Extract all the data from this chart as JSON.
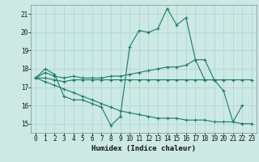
{
  "xlabel": "Humidex (Indice chaleur)",
  "ylabel": "",
  "bg_color": "#cce9e4",
  "grid_color": "#b0d8d4",
  "line_color": "#1a7a6e",
  "xlim": [
    -0.5,
    23.5
  ],
  "ylim": [
    14.5,
    21.5
  ],
  "yticks": [
    15,
    16,
    17,
    18,
    19,
    20,
    21
  ],
  "xticks": [
    0,
    1,
    2,
    3,
    4,
    5,
    6,
    7,
    8,
    9,
    10,
    11,
    12,
    13,
    14,
    15,
    16,
    17,
    18,
    19,
    20,
    21,
    22,
    23
  ],
  "series": [
    {
      "x": [
        0,
        1,
        2,
        3,
        4,
        5,
        6,
        7,
        8,
        9,
        10,
        11,
        12,
        13,
        14,
        15,
        16,
        17,
        18,
        19,
        20,
        21,
        22
      ],
      "y": [
        17.5,
        18.0,
        17.7,
        16.5,
        16.3,
        16.3,
        16.1,
        15.9,
        14.9,
        15.4,
        19.2,
        20.1,
        20.0,
        20.2,
        21.3,
        20.4,
        20.8,
        18.5,
        17.4,
        17.4,
        16.8,
        15.1,
        16.0
      ]
    },
    {
      "x": [
        0,
        1,
        2,
        3,
        4,
        5,
        6,
        7,
        8,
        9,
        10,
        11,
        12,
        13,
        14,
        15,
        16,
        17,
        18,
        19,
        20,
        21,
        22,
        23
      ],
      "y": [
        17.5,
        17.5,
        17.4,
        17.3,
        17.4,
        17.4,
        17.4,
        17.4,
        17.4,
        17.4,
        17.4,
        17.4,
        17.4,
        17.4,
        17.4,
        17.4,
        17.4,
        17.4,
        17.4,
        17.4,
        17.4,
        17.4,
        17.4,
        17.4
      ]
    },
    {
      "x": [
        0,
        1,
        2,
        3,
        4,
        5,
        6,
        7,
        8,
        9,
        10,
        11,
        12,
        13,
        14,
        15,
        16,
        17,
        18,
        19,
        20,
        21,
        22,
        23
      ],
      "y": [
        17.5,
        17.3,
        17.1,
        16.9,
        16.7,
        16.5,
        16.3,
        16.1,
        15.9,
        15.7,
        15.6,
        15.5,
        15.4,
        15.3,
        15.3,
        15.3,
        15.2,
        15.2,
        15.2,
        15.1,
        15.1,
        15.1,
        15.0,
        15.0
      ]
    },
    {
      "x": [
        0,
        1,
        2,
        3,
        4,
        5,
        6,
        7,
        8,
        9,
        10,
        11,
        12,
        13,
        14,
        15,
        16,
        17,
        18,
        19,
        20
      ],
      "y": [
        17.5,
        17.8,
        17.6,
        17.5,
        17.6,
        17.5,
        17.5,
        17.5,
        17.6,
        17.6,
        17.7,
        17.8,
        17.9,
        18.0,
        18.1,
        18.1,
        18.2,
        18.5,
        18.5,
        17.4,
        17.4
      ]
    }
  ]
}
